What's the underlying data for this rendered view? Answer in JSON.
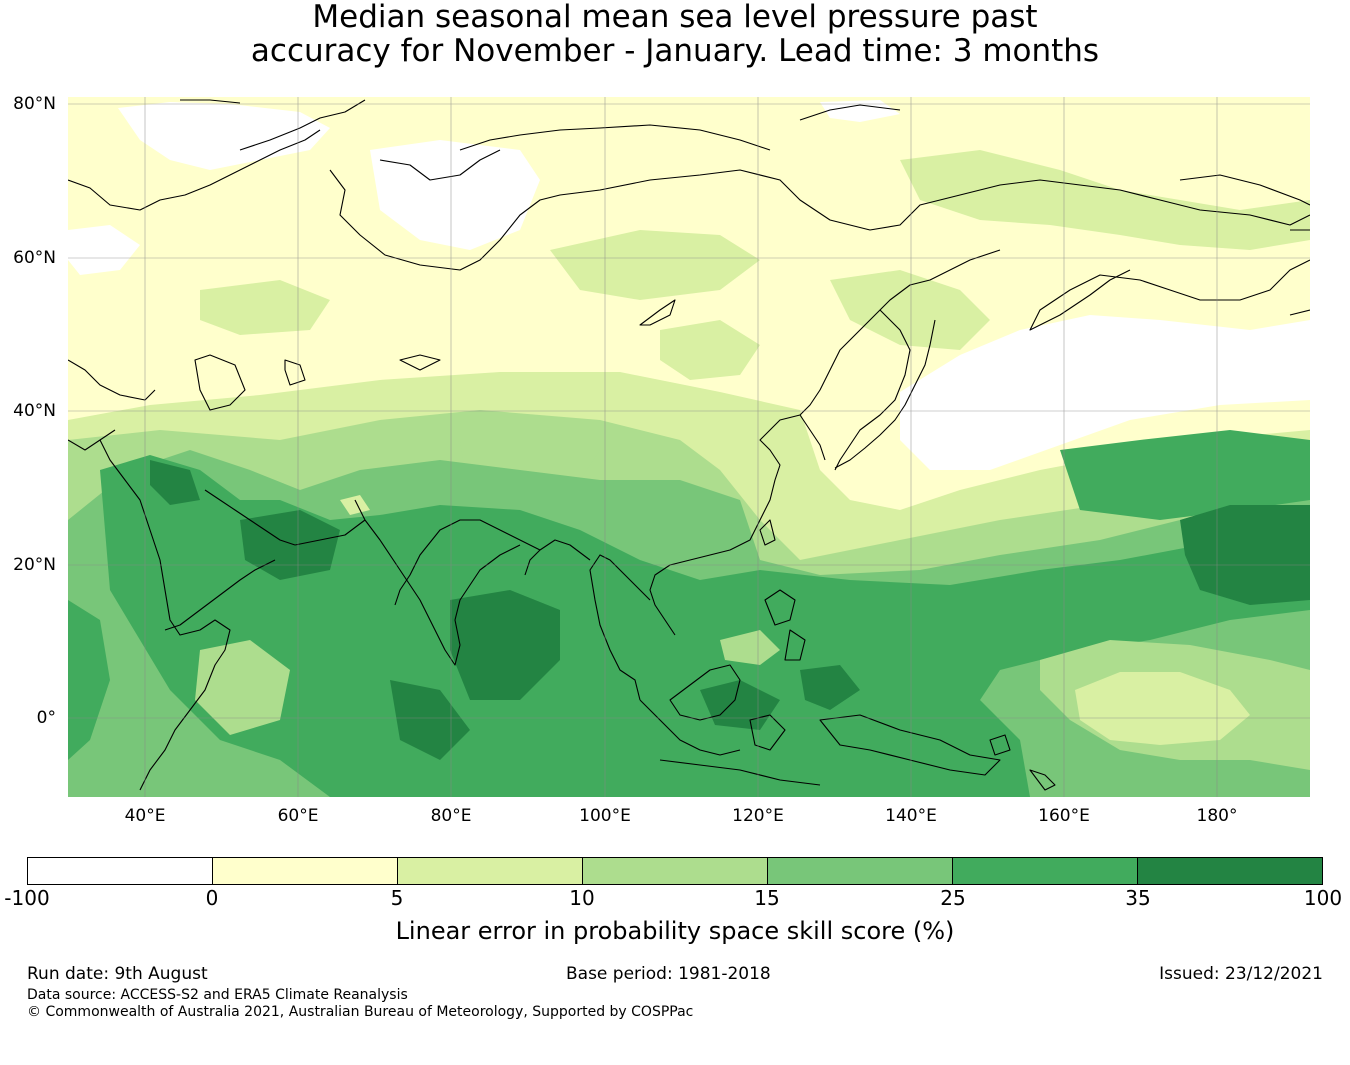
{
  "title": {
    "line1": "Median seasonal mean sea level pressure past",
    "line2": "accuracy for November - January. Lead time: 3 months"
  },
  "map": {
    "lat_ticks": [
      "80°N",
      "60°N",
      "40°N",
      "20°N",
      "0°"
    ],
    "lon_ticks": [
      "40°E",
      "60°E",
      "80°E",
      "100°E",
      "120°E",
      "140°E",
      "160°E",
      "180°"
    ],
    "extent": {
      "lon_min": 30,
      "lon_max": 192,
      "lat_min": -10,
      "lat_max": 81
    }
  },
  "colorbar": {
    "label": "Linear error in probability space skill score (%)",
    "ticks": [
      "-100",
      "0",
      "5",
      "10",
      "15",
      "25",
      "35",
      "100"
    ],
    "colors": [
      "#ffffff",
      "#ffffcc",
      "#d9f0a3",
      "#addd8e",
      "#78c679",
      "#41ab5d",
      "#238443"
    ]
  },
  "footer": {
    "run_date": "Run date: 9th August",
    "base_period": "Base period: 1981-2018",
    "issued": "Issued: 23/12/2021",
    "data_source": "Data source: ACCESS-S2 and ERA5 Climate Reanalysis",
    "copyright": "© Commonwealth of Australia 2021, Australian Bureau of Meteorology, Supported by COSPPac"
  }
}
